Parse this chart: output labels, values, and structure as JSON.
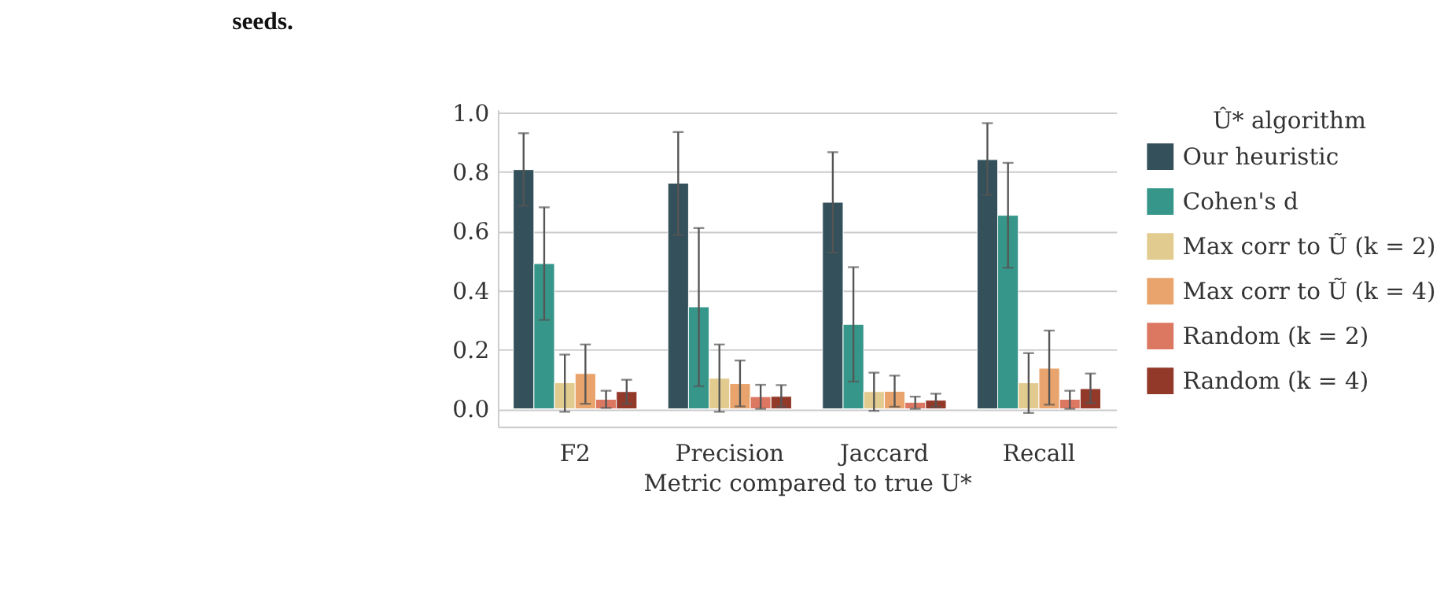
{
  "chart_data": {
    "type": "bar",
    "xlabel": "Metric compared to true U*",
    "legend_title": "Û* algorithm",
    "annotations": [
      "seeds."
    ],
    "categories": [
      "F2",
      "Precision",
      "Jaccard",
      "Recall"
    ],
    "series": [
      {
        "name": "Our heuristic",
        "color": "#34505b",
        "values": [
          0.807,
          0.761,
          0.697,
          0.841
        ],
        "errors": [
          [
            0.685,
            0.93
          ],
          [
            0.586,
            0.934
          ],
          [
            0.527,
            0.866
          ],
          [
            0.722,
            0.964
          ]
        ]
      },
      {
        "name": "Cohen's d",
        "color": "#36968a",
        "values": [
          0.49,
          0.344,
          0.285,
          0.653
        ],
        "errors": [
          [
            0.3,
            0.68
          ],
          [
            0.076,
            0.61
          ],
          [
            0.092,
            0.478
          ],
          [
            0.476,
            0.83
          ]
        ]
      },
      {
        "name": "Max corr to Ũ (k = 2)",
        "color": "#e2cb8e",
        "values": [
          0.088,
          0.103,
          0.058,
          0.088
        ],
        "errors": [
          [
            -0.01,
            0.183
          ],
          [
            -0.01,
            0.217
          ],
          [
            -0.007,
            0.122
          ],
          [
            -0.014,
            0.188
          ]
        ]
      },
      {
        "name": "Max corr to Ũ (k = 4)",
        "color": "#e8a46c",
        "values": [
          0.119,
          0.085,
          0.059,
          0.137
        ],
        "errors": [
          [
            0.017,
            0.217
          ],
          [
            0.008,
            0.163
          ],
          [
            0.007,
            0.112
          ],
          [
            0.014,
            0.264
          ]
        ]
      },
      {
        "name": "Random (k = 2)",
        "color": "#dc7762",
        "values": [
          0.032,
          0.041,
          0.022,
          0.032
        ],
        "errors": [
          [
            0.003,
            0.061
          ],
          [
            0.0,
            0.081
          ],
          [
            0.0,
            0.041
          ],
          [
            0.0,
            0.061
          ]
        ]
      },
      {
        "name": "Random (k = 4)",
        "color": "#93392a",
        "values": [
          0.058,
          0.042,
          0.029,
          0.068
        ],
        "errors": [
          [
            0.017,
            0.098
          ],
          [
            0.007,
            0.08
          ],
          [
            0.007,
            0.051
          ],
          [
            0.02,
            0.119
          ]
        ]
      }
    ],
    "ylim": [
      -0.06,
      1.01
    ],
    "yticks": [
      {
        "value": 0,
        "label": "0.0"
      },
      0.2,
      0.4,
      0.6,
      0.8,
      {
        "value": 1,
        "label": "1.0"
      }
    ],
    "grid": "y",
    "legend": "right"
  }
}
